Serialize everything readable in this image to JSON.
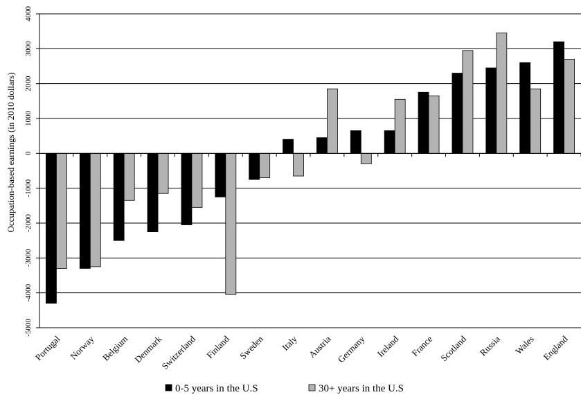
{
  "chart_data": {
    "type": "bar",
    "ylabel": "Occupation-based earnings (in 2010 dollars)",
    "ylim": [
      -5000,
      4000
    ],
    "yticks": [
      4000,
      3000,
      2000,
      1000,
      0,
      -1000,
      -2000,
      -3000,
      -4000,
      -5000
    ],
    "grid": true,
    "legend_position": "bottom",
    "categories": [
      "Portugal",
      "Norway",
      "Belgium",
      "Denmark",
      "Switzerland",
      "Finland",
      "Sweden",
      "Italy",
      "Austria",
      "Germany",
      "Ireland",
      "France",
      "Scotland",
      "Russia",
      "Wales",
      "England"
    ],
    "series": [
      {
        "name": "0-5 years in the U.S",
        "color": "#000000",
        "values": [
          -4300,
          -3300,
          -2500,
          -2250,
          -2050,
          -1250,
          -750,
          400,
          450,
          650,
          650,
          1750,
          2300,
          2450,
          2600,
          3200
        ]
      },
      {
        "name": "30+ years in the U.S",
        "color": "#b3b3b3",
        "values": [
          -3300,
          -3250,
          -1350,
          -1150,
          -1550,
          -4050,
          -700,
          -650,
          1850,
          -300,
          1550,
          1650,
          2950,
          3450,
          1850,
          2700
        ]
      }
    ]
  }
}
